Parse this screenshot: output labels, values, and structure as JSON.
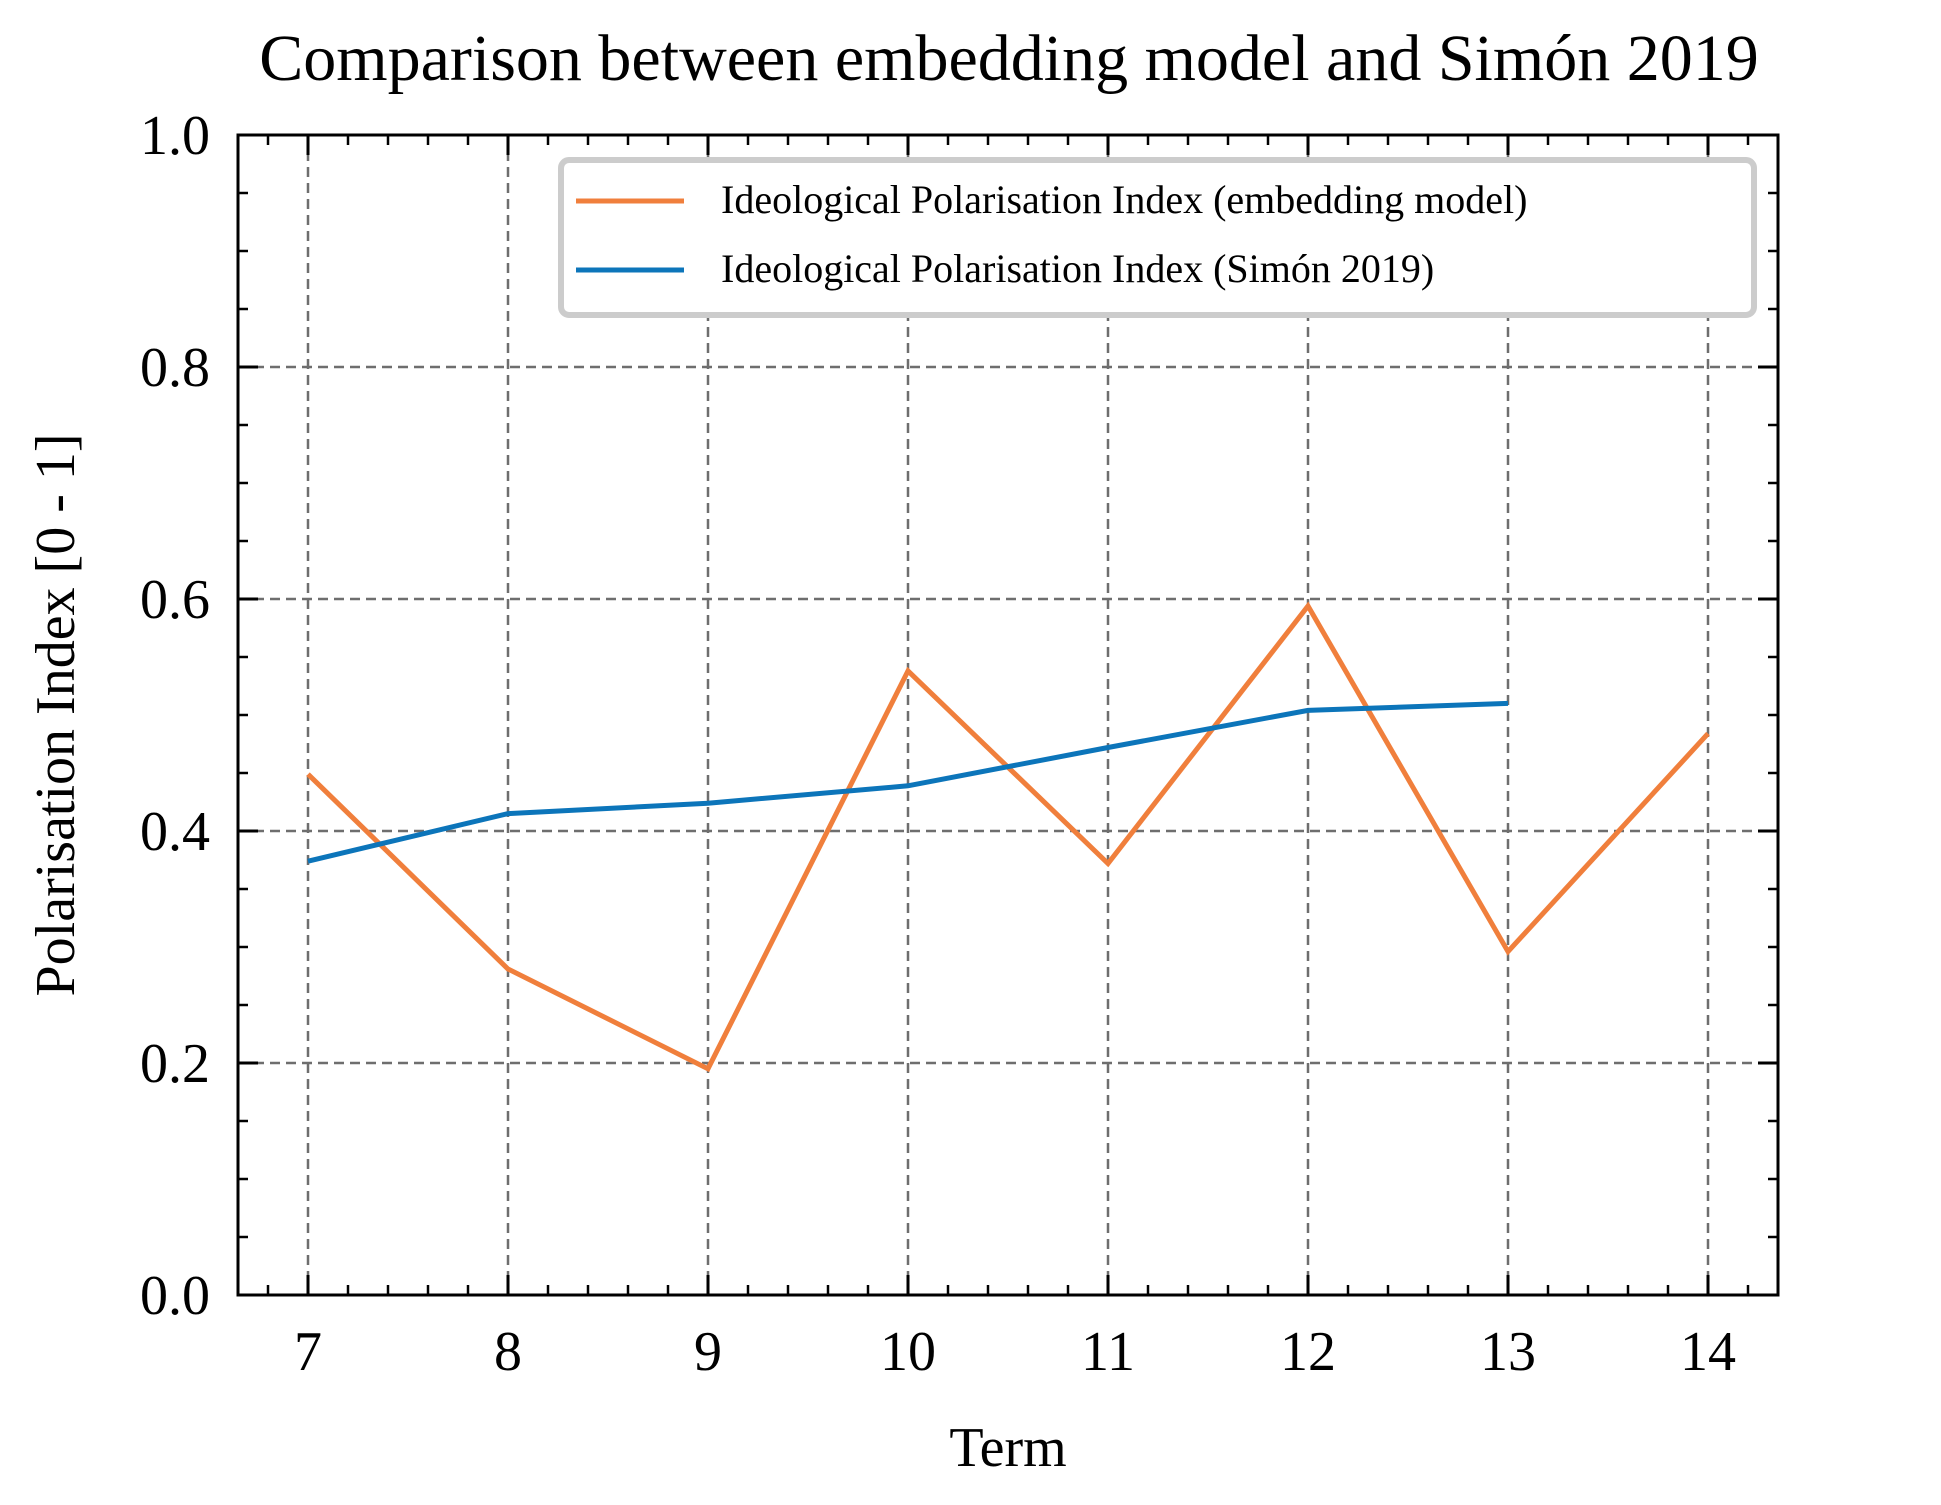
{
  "chart_data": {
    "type": "line",
    "title": "Comparison between embedding model and Simón 2019",
    "xlabel": "Term",
    "ylabel": "Polarisation Index [0 - 1]",
    "xlim": [
      6.65,
      14.35
    ],
    "ylim": [
      0.0,
      1.0
    ],
    "x_ticks": [
      7,
      8,
      9,
      10,
      11,
      12,
      13,
      14
    ],
    "y_ticks": [
      0.0,
      0.2,
      0.4,
      0.6,
      0.8,
      1.0
    ],
    "y_tick_labels": [
      "0.0",
      "0.2",
      "0.4",
      "0.6",
      "0.8",
      "1.0"
    ],
    "grid": true,
    "legend_position": "top-right",
    "series": [
      {
        "name": "Ideological Polarisation Index (embedding model)",
        "color": "#F07F3C",
        "x": [
          7,
          8,
          9,
          10,
          11,
          12,
          13,
          14
        ],
        "y": [
          0.449,
          0.281,
          0.195,
          0.538,
          0.372,
          0.594,
          0.296,
          0.484
        ]
      },
      {
        "name": "Ideological Polarisation Index (Simón 2019)",
        "color": "#0C75BA",
        "x": [
          7,
          8,
          9,
          10,
          11,
          12,
          13
        ],
        "y": [
          0.374,
          0.415,
          0.424,
          0.439,
          0.472,
          0.504,
          0.51
        ]
      }
    ]
  }
}
